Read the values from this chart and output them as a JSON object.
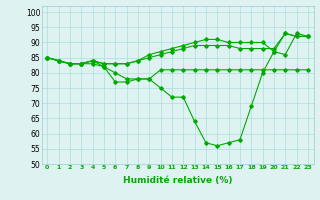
{
  "background_color": "#dff2f2",
  "grid_color": "#aadddd",
  "line_color": "#00aa00",
  "xlabel": "Humidité relative (%)",
  "xlabel_color": "#00aa00",
  "ylim": [
    50,
    102
  ],
  "xlim": [
    -0.5,
    23.5
  ],
  "yticks": [
    50,
    55,
    60,
    65,
    70,
    75,
    80,
    85,
    90,
    95,
    100
  ],
  "xticks": [
    0,
    1,
    2,
    3,
    4,
    5,
    6,
    7,
    8,
    9,
    10,
    11,
    12,
    13,
    14,
    15,
    16,
    17,
    18,
    19,
    20,
    21,
    22,
    23
  ],
  "lines": [
    {
      "x": [
        0,
        1,
        2,
        3,
        4,
        5,
        6,
        7,
        8,
        9,
        10,
        11,
        12,
        13,
        14,
        15,
        16,
        17,
        18,
        19,
        20,
        21,
        22,
        23
      ],
      "y": [
        85,
        84,
        83,
        83,
        83,
        82,
        80,
        78,
        78,
        78,
        81,
        81,
        81,
        81,
        81,
        81,
        81,
        81,
        81,
        81,
        81,
        81,
        81,
        81
      ]
    },
    {
      "x": [
        0,
        1,
        2,
        3,
        4,
        5,
        6,
        7,
        8,
        9,
        10,
        11,
        12,
        13,
        14,
        15,
        16,
        17,
        18,
        19,
        20,
        21,
        22,
        23
      ],
      "y": [
        85,
        84,
        83,
        83,
        84,
        82,
        77,
        77,
        78,
        78,
        75,
        72,
        72,
        64,
        57,
        56,
        57,
        58,
        69,
        80,
        87,
        86,
        93,
        92
      ]
    },
    {
      "x": [
        0,
        1,
        2,
        3,
        4,
        5,
        6,
        7,
        8,
        9,
        10,
        11,
        12,
        13,
        14,
        15,
        16,
        17,
        18,
        19,
        20,
        21,
        22,
        23
      ],
      "y": [
        85,
        84,
        83,
        83,
        84,
        83,
        83,
        83,
        84,
        85,
        86,
        87,
        88,
        89,
        89,
        89,
        89,
        88,
        88,
        88,
        88,
        93,
        92,
        92
      ]
    },
    {
      "x": [
        0,
        1,
        2,
        3,
        4,
        5,
        6,
        7,
        8,
        9,
        10,
        11,
        12,
        13,
        14,
        15,
        16,
        17,
        18,
        19,
        20,
        21,
        22,
        23
      ],
      "y": [
        85,
        84,
        83,
        83,
        84,
        83,
        83,
        83,
        84,
        86,
        87,
        88,
        89,
        90,
        91,
        91,
        90,
        90,
        90,
        90,
        87,
        93,
        92,
        92
      ]
    }
  ]
}
